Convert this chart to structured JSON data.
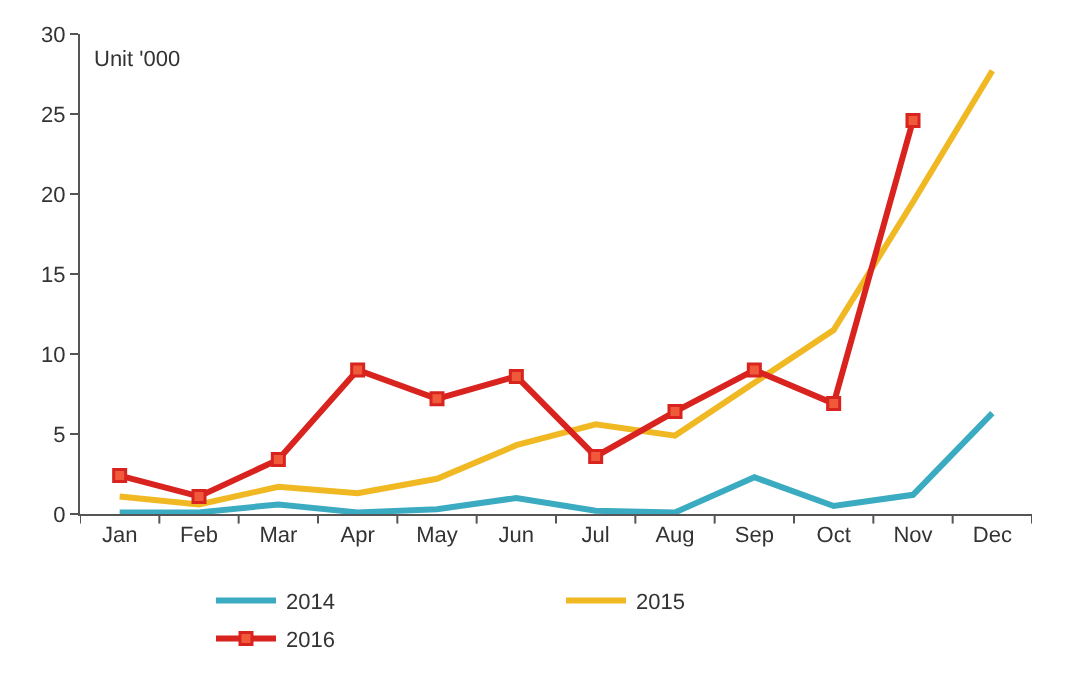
{
  "chart_data": {
    "type": "line",
    "categories": [
      "Jan",
      "Feb",
      "Mar",
      "Apr",
      "May",
      "Jun",
      "Jul",
      "Aug",
      "Sep",
      "Oct",
      "Nov",
      "Dec"
    ],
    "series": [
      {
        "name": "2014",
        "color": "#3aabc0",
        "values": [
          0.1,
          0.1,
          0.6,
          0.1,
          0.3,
          1.0,
          0.2,
          0.1,
          2.3,
          0.5,
          1.2,
          6.3
        ]
      },
      {
        "name": "2015",
        "color": "#f0b823",
        "values": [
          1.1,
          0.6,
          1.7,
          1.3,
          2.2,
          4.3,
          5.6,
          4.9,
          8.2,
          11.5,
          19.5,
          27.7
        ]
      },
      {
        "name": "2016",
        "color": "#d9231f",
        "marker": "square",
        "values": [
          2.4,
          1.1,
          3.4,
          9.0,
          7.2,
          8.6,
          3.6,
          6.4,
          9.0,
          6.9,
          24.6,
          null
        ]
      }
    ],
    "annotations": [
      "Unit '000"
    ],
    "ylim": [
      0,
      30
    ],
    "yticks": [
      0,
      5,
      10,
      15,
      20,
      25,
      30
    ],
    "grid": false,
    "legend": "bottom",
    "line_style": "solid"
  }
}
